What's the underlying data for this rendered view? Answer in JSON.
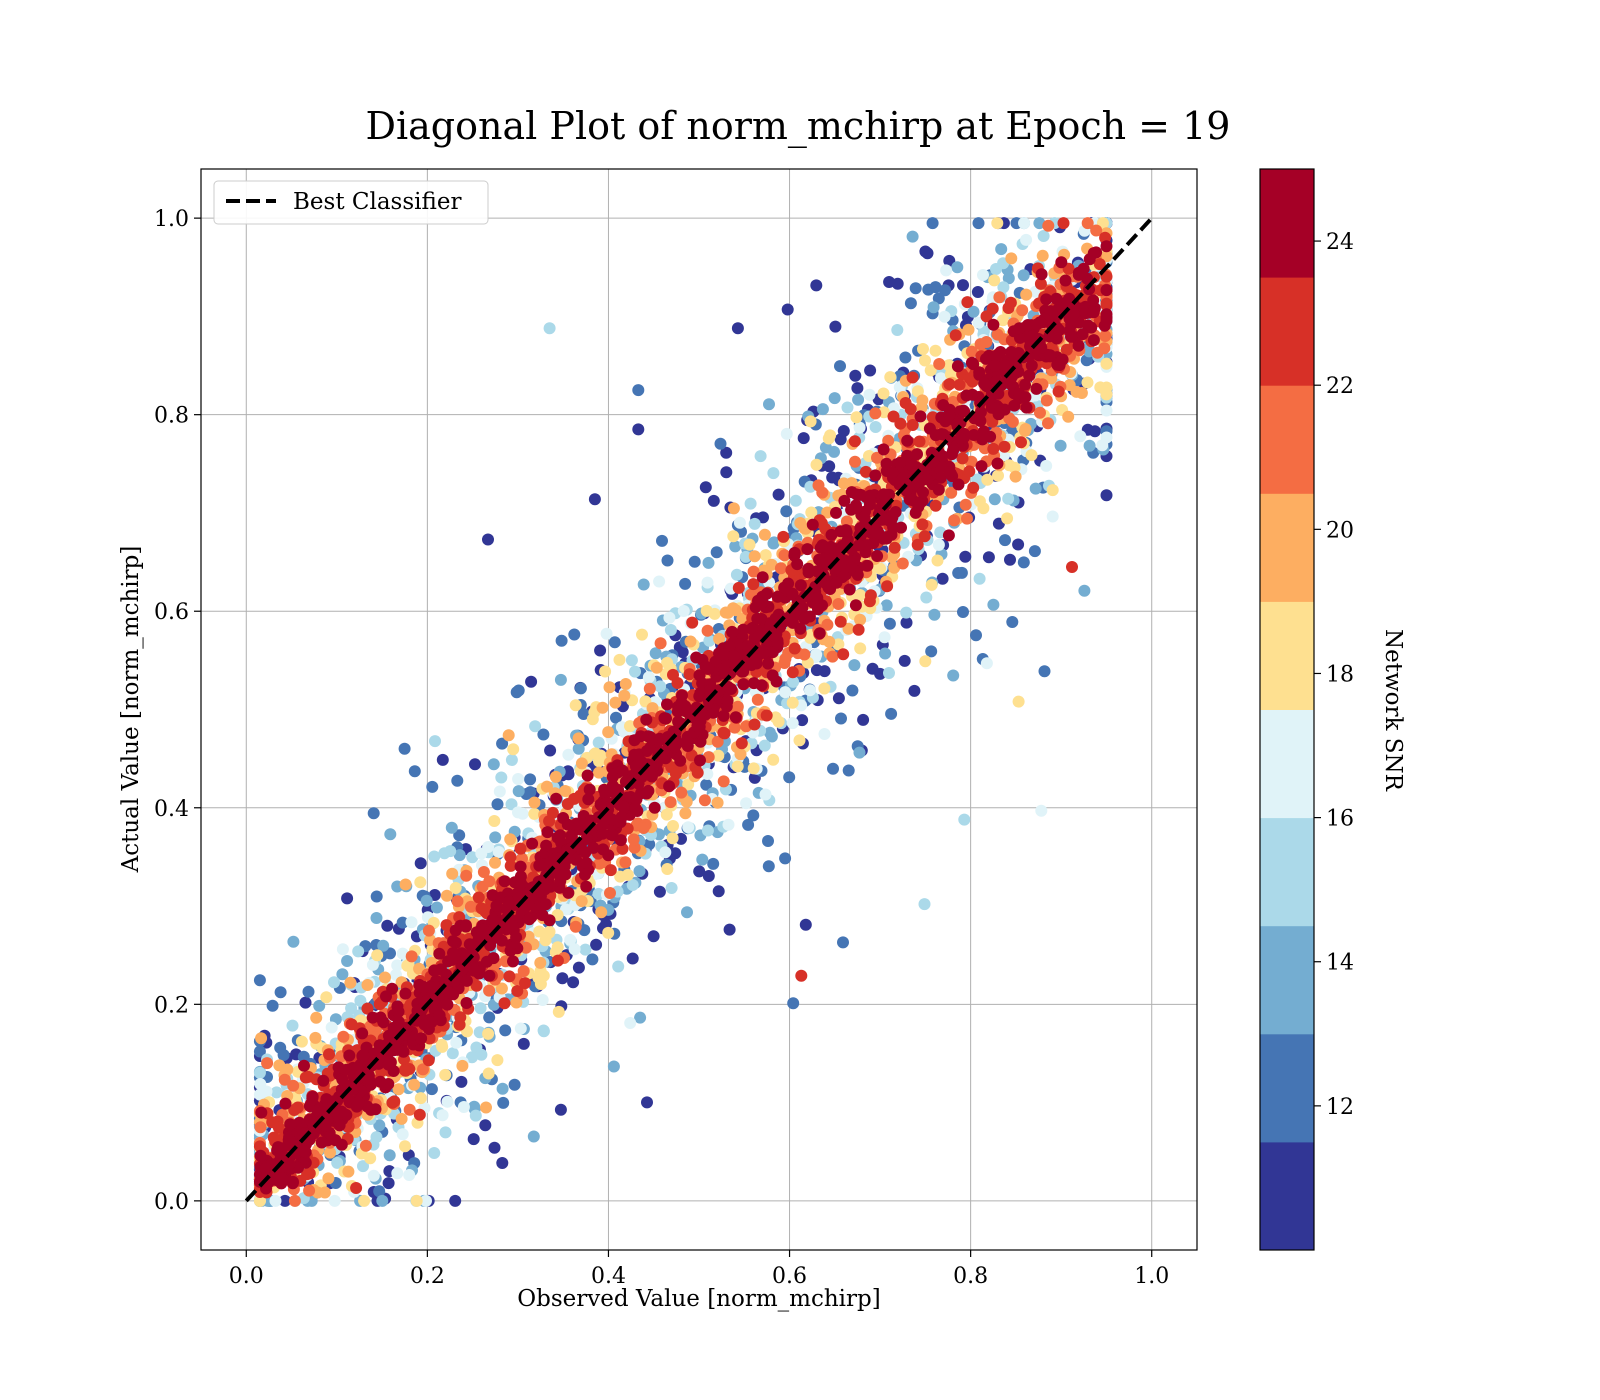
{
  "chart_data": {
    "type": "scatter",
    "title": "Diagonal Plot of norm_mchirp at Epoch = 19",
    "xlabel": "Observed Value [norm_mchirp]",
    "ylabel": "Actual Value [norm_mchirp]",
    "xlim": [
      -0.05,
      1.05
    ],
    "ylim": [
      -0.05,
      1.05
    ],
    "xticks": [
      "0.0",
      "0.2",
      "0.4",
      "0.6",
      "0.8",
      "1.0"
    ],
    "yticks": [
      "0.0",
      "0.2",
      "0.4",
      "0.6",
      "0.8",
      "1.0"
    ],
    "grid": true,
    "legend": {
      "position": "upper-left",
      "entries": [
        "Best Classifier"
      ]
    },
    "reference_line": {
      "label": "Best Classifier",
      "style": "dashed",
      "color": "#000000",
      "x": [
        0,
        1
      ],
      "y": [
        0,
        1
      ]
    },
    "colorbar": {
      "label": "Network SNR",
      "range": [
        10,
        25
      ],
      "ticks": [
        "12",
        "14",
        "16",
        "18",
        "20",
        "22",
        "24"
      ],
      "tick_values": [
        12,
        14,
        16,
        18,
        20,
        22,
        24
      ],
      "colors": [
        "#313695",
        "#4575b4",
        "#74add1",
        "#abd9e9",
        "#e0f3f8",
        "#fee090",
        "#fdae61",
        "#f46d43",
        "#d73027",
        "#a50026"
      ]
    },
    "scatter_description": "Dense cloud of points along y = x from about 0.02 to 0.95; high-SNR (dark red) points concentrated near the diagonal, lower-SNR (blue) points spread farther away.",
    "outliers": [
      {
        "x": 0.335,
        "y": 0.888,
        "snr": 14.5
      },
      {
        "x": 0.543,
        "y": 0.888,
        "snr": 11.0
      },
      {
        "x": 0.598,
        "y": 0.907,
        "snr": 11.0
      },
      {
        "x": 0.267,
        "y": 0.673,
        "snr": 11.0
      },
      {
        "x": 0.433,
        "y": 0.825,
        "snr": 12.0
      },
      {
        "x": 0.433,
        "y": 0.785,
        "snr": 11.0
      },
      {
        "x": 0.385,
        "y": 0.714,
        "snr": 11.0
      },
      {
        "x": 0.618,
        "y": 0.281,
        "snr": 11.0
      },
      {
        "x": 0.659,
        "y": 0.263,
        "snr": 12.0
      },
      {
        "x": 0.604,
        "y": 0.201,
        "snr": 12.0
      },
      {
        "x": 0.613,
        "y": 0.229,
        "snr": 22.5
      },
      {
        "x": 0.749,
        "y": 0.302,
        "snr": 14.5
      },
      {
        "x": 0.793,
        "y": 0.388,
        "snr": 15.5
      },
      {
        "x": 0.878,
        "y": 0.397,
        "snr": 17.0
      },
      {
        "x": 0.912,
        "y": 0.645,
        "snr": 22.5
      },
      {
        "x": 0.853,
        "y": 0.508,
        "snr": 18.5
      },
      {
        "x": 0.846,
        "y": 0.589,
        "snr": 12.5
      },
      {
        "x": 0.818,
        "y": 0.547,
        "snr": 17.0
      },
      {
        "x": 0.264,
        "y": 0.077,
        "snr": 11.0
      },
      {
        "x": 0.183,
        "y": 0.031,
        "snr": 13.5
      },
      {
        "x": 0.055,
        "y": 0.149,
        "snr": 11.0
      },
      {
        "x": 0.424,
        "y": 0.181,
        "snr": 16.0
      },
      {
        "x": 0.71,
        "y": 0.935,
        "snr": 11.0
      },
      {
        "x": 0.75,
        "y": 0.966,
        "snr": 11.0
      }
    ]
  }
}
